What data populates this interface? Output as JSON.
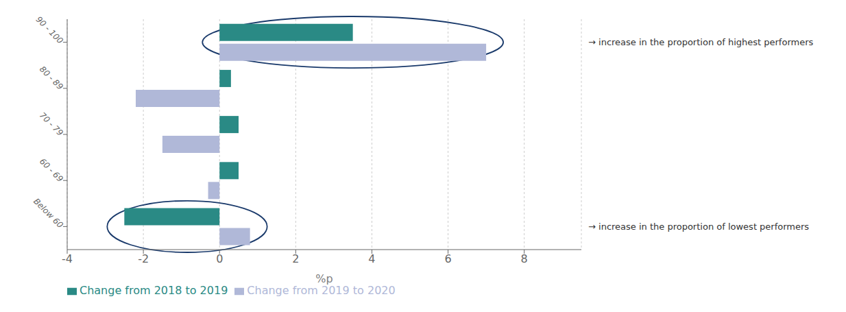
{
  "chart_data": {
    "type": "bar",
    "orientation": "horizontal",
    "categories": [
      "90 - 100",
      "80 - 89",
      "70 - 79",
      "60 - 69",
      "Below 60"
    ],
    "series": [
      {
        "name": "Change from 2018 to 2019",
        "color": "#2a8a85",
        "values": [
          3.5,
          0.3,
          0.5,
          0.5,
          -2.5
        ]
      },
      {
        "name": "Change from 2019 to 2020",
        "color": "#b0b8d8",
        "values": [
          7.0,
          -2.2,
          -1.5,
          -0.3,
          0.8
        ]
      }
    ],
    "xlim": [
      -4,
      9.5
    ],
    "xticks": [
      -4,
      -2,
      0,
      2,
      4,
      6,
      8
    ],
    "xlabel": "%p",
    "annotations": [
      {
        "text": "→ increase in the proportion of highest performers",
        "category": "90 - 100",
        "color": "#1a3a6b"
      },
      {
        "text": "→ increase in the proportion of lowest performers",
        "category": "Below 60",
        "color": "#1a3a6b"
      }
    ],
    "grid": true,
    "legend": "lower left"
  }
}
